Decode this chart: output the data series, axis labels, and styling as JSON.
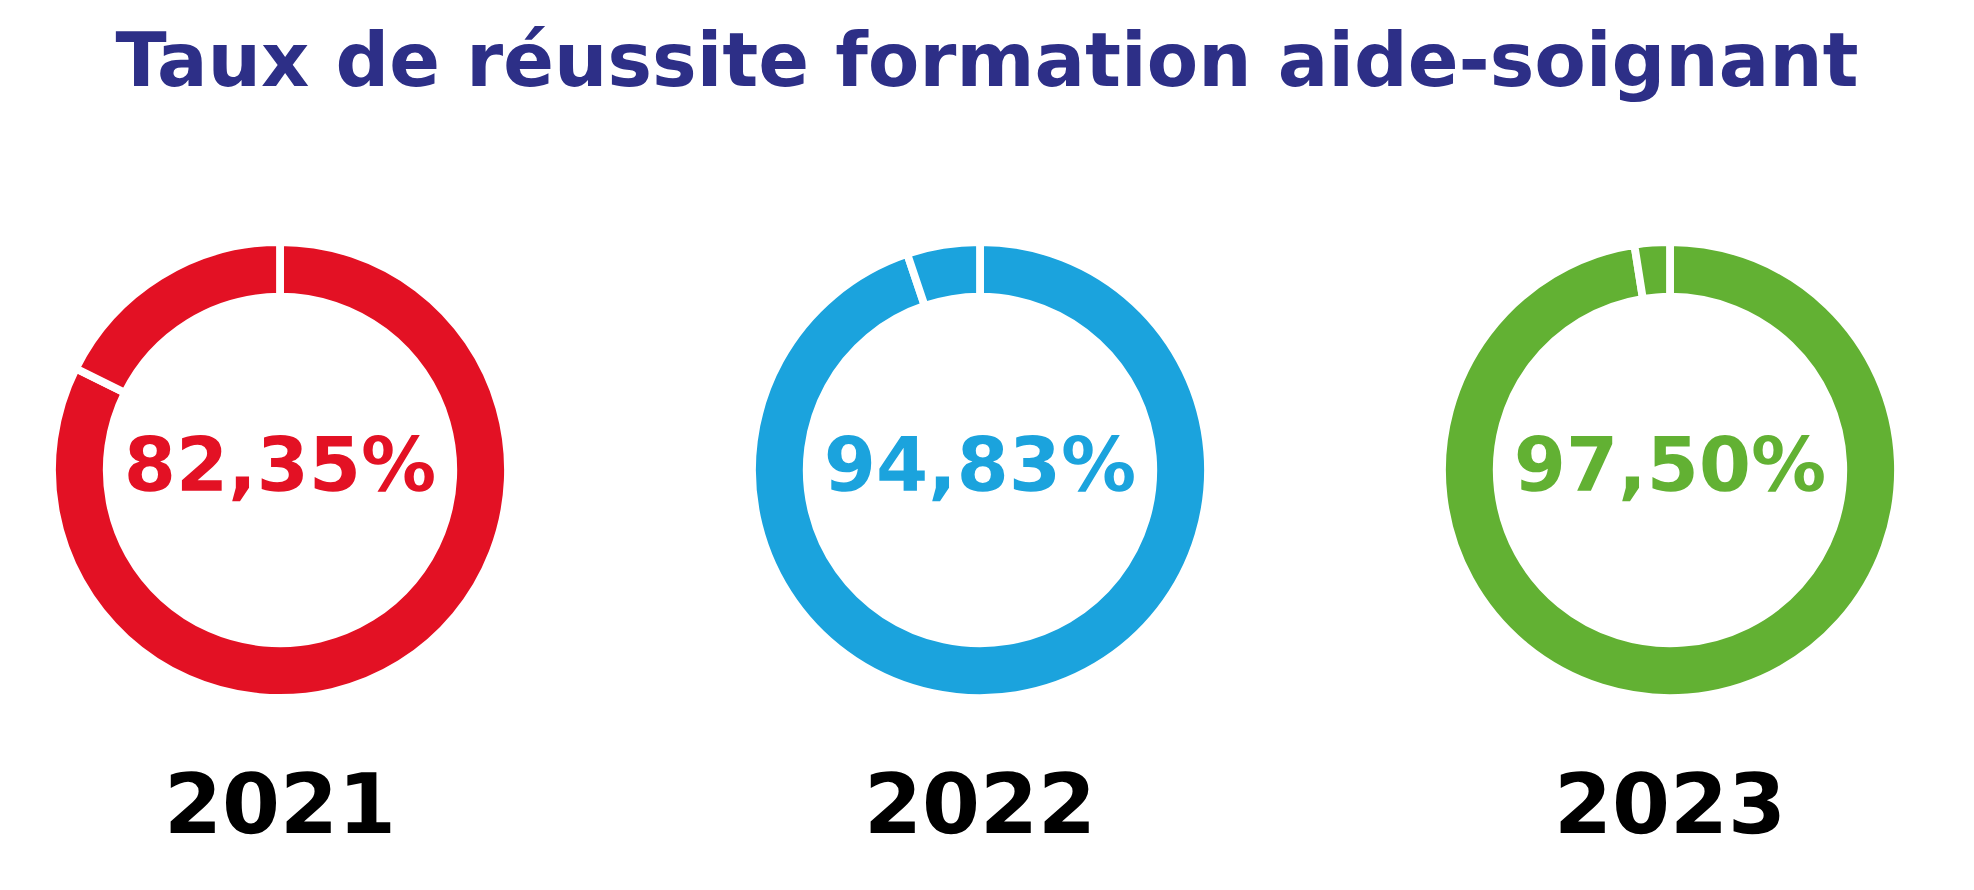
{
  "chart_data": [
    {
      "type": "donut",
      "title": "Taux de réussite formation aide-soignant",
      "xlabel": "2021",
      "categories": [
        null,
        null
      ],
      "values": [
        82.35,
        17.65
      ],
      "colors": [
        "#e31124",
        "#e31124"
      ],
      "value_labels": [
        "82,35%",
        null
      ]
    },
    {
      "type": "donut",
      "xlabel": "2022",
      "categories": [
        null,
        null
      ],
      "values": [
        94.83,
        5.17
      ],
      "colors": [
        "#1ba3dd",
        "#1ba3dd"
      ],
      "value_labels": [
        "94,83%",
        null
      ]
    },
    {
      "type": "donut",
      "xlabel": "2023",
      "categories": [
        null,
        null
      ],
      "values": [
        97.5,
        2.5
      ],
      "colors": [
        "#62b133",
        "#62b133"
      ],
      "value_labels": [
        "97,50%",
        null
      ]
    }
  ]
}
